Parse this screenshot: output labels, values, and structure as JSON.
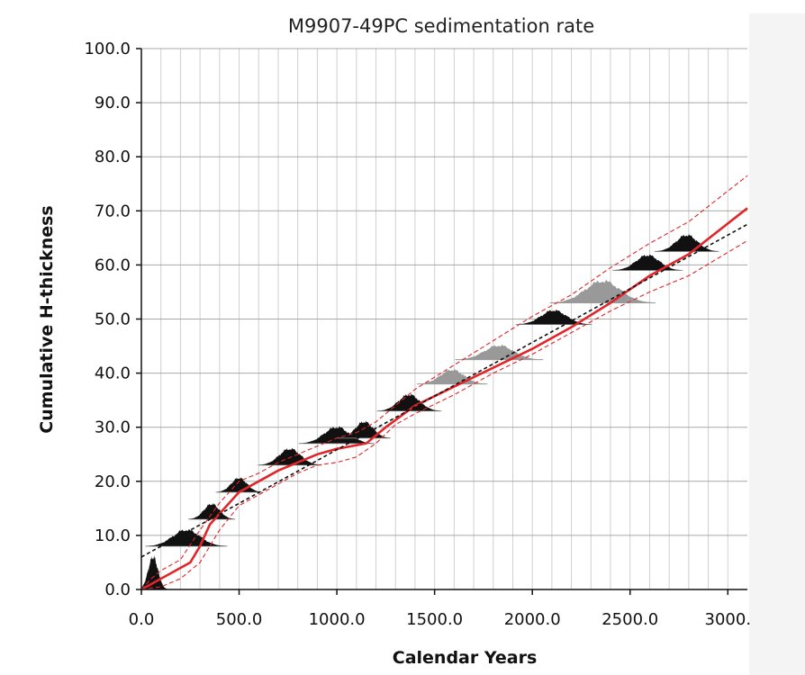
{
  "chart_data": {
    "type": "line",
    "title": "M9907-49PC sedimentation rate",
    "xlabel": "Calendar Years",
    "ylabel": "Cumulative H-thickness",
    "xlim": [
      0,
      3100
    ],
    "ylim": [
      0,
      100
    ],
    "x_ticks": [
      0,
      500,
      1000,
      1500,
      2000,
      2500,
      3000
    ],
    "x_tick_labels": [
      "0.0",
      "500.0",
      "1000.0",
      "1500.0",
      "2000.0",
      "2500.0",
      "3000."
    ],
    "y_ticks": [
      0,
      10,
      20,
      30,
      40,
      50,
      60,
      70,
      80,
      90,
      100
    ],
    "y_tick_labels": [
      "0.0",
      "10.0",
      "20.0",
      "30.0",
      "40.0",
      "50.0",
      "60.0",
      "70.0",
      "80.0",
      "90.0",
      "100.0"
    ],
    "grid": true,
    "legend": "none",
    "series": [
      {
        "style": "red-solid",
        "color": "#e0262a",
        "x": [
          0,
          50,
          100,
          150,
          200,
          250,
          300,
          350,
          400,
          500,
          600,
          700,
          800,
          900,
          1000,
          1150,
          1250,
          1400,
          1600,
          1800,
          2000,
          2200,
          2400,
          2600,
          2800,
          3100
        ],
        "y": [
          0,
          1,
          2,
          3,
          4,
          5,
          8,
          12,
          14,
          18,
          20,
          22,
          23.5,
          25,
          26,
          27,
          30,
          34,
          37.5,
          41,
          44.5,
          48.5,
          53,
          58,
          62,
          70.5
        ]
      },
      {
        "style": "red-dashed-upper",
        "color": "#e0262a",
        "x": [
          0,
          50,
          100,
          200,
          300,
          400,
          500,
          600,
          700,
          800,
          900,
          1000,
          1100,
          1200,
          1300,
          1400,
          1600,
          1800,
          2000,
          2200,
          2400,
          2600,
          2800,
          3100
        ],
        "y": [
          0,
          2,
          3.5,
          5.5,
          11,
          16,
          20,
          21.5,
          23.5,
          25,
          26.5,
          28,
          29,
          31,
          34,
          37,
          41.5,
          46,
          50.5,
          54.5,
          59.5,
          64,
          68,
          76.5
        ]
      },
      {
        "style": "red-dashed-lower",
        "color": "#e0262a",
        "x": [
          0,
          100,
          200,
          300,
          400,
          500,
          600,
          700,
          800,
          900,
          1000,
          1100,
          1200,
          1300,
          1400,
          1600,
          1800,
          2000,
          2200,
          2400,
          2600,
          2800,
          3100
        ],
        "y": [
          0,
          0.5,
          2,
          5,
          11,
          15.5,
          17.5,
          19.5,
          21.5,
          23,
          23.5,
          24.5,
          27,
          30.5,
          32.5,
          36,
          40,
          43.5,
          47.5,
          51.5,
          55,
          58,
          64.5
        ]
      },
      {
        "style": "black-dashed-trend",
        "color": "#111111",
        "x": [
          0,
          3100
        ],
        "y": [
          6,
          67.5
        ]
      }
    ],
    "age_distributions": [
      {
        "depth": 0,
        "center": 60,
        "spread": 25,
        "height": 6,
        "color": "#111111"
      },
      {
        "depth": 8,
        "center": 230,
        "spread": 70,
        "height": 3,
        "color": "#111111"
      },
      {
        "depth": 13,
        "center": 360,
        "spread": 40,
        "height": 2.8,
        "color": "#111111"
      },
      {
        "depth": 18,
        "center": 500,
        "spread": 40,
        "height": 2.6,
        "color": "#111111"
      },
      {
        "depth": 23,
        "center": 760,
        "spread": 55,
        "height": 3,
        "color": "#111111"
      },
      {
        "depth": 27,
        "center": 1000,
        "spread": 65,
        "height": 3,
        "color": "#111111"
      },
      {
        "depth": 28,
        "center": 1140,
        "spread": 45,
        "height": 3,
        "color": "#111111"
      },
      {
        "depth": 33,
        "center": 1370,
        "spread": 55,
        "height": 3,
        "color": "#111111"
      },
      {
        "depth": 38,
        "center": 1590,
        "spread": 60,
        "height": 2.6,
        "color": "#999999"
      },
      {
        "depth": 42.5,
        "center": 1830,
        "spread": 75,
        "height": 2.6,
        "color": "#999999"
      },
      {
        "depth": 49,
        "center": 2110,
        "spread": 65,
        "height": 2.6,
        "color": "#111111"
      },
      {
        "depth": 53,
        "center": 2360,
        "spread": 90,
        "height": 4,
        "color": "#999999"
      },
      {
        "depth": 59,
        "center": 2590,
        "spread": 60,
        "height": 2.8,
        "color": "#111111"
      },
      {
        "depth": 62.5,
        "center": 2790,
        "spread": 55,
        "height": 3,
        "color": "#111111"
      }
    ]
  }
}
